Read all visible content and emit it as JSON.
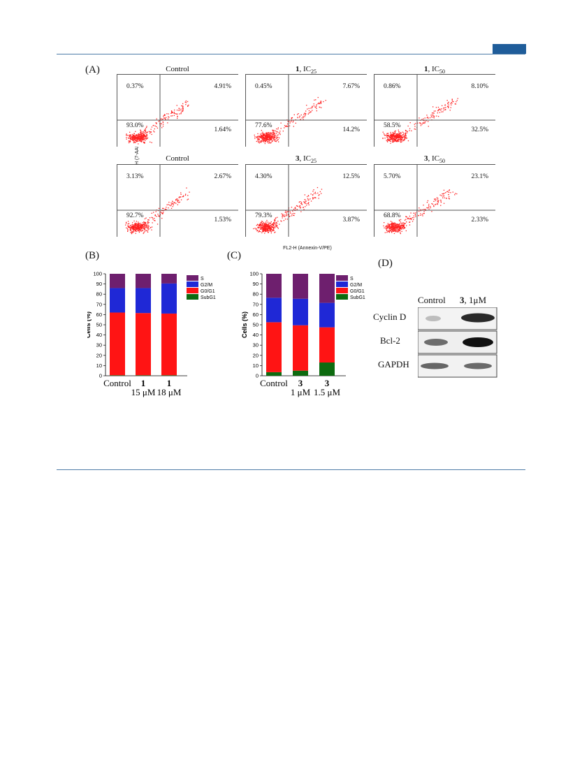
{
  "figure": {
    "panel_labels": {
      "A": "(A)",
      "B": "(B)",
      "C": "(C)",
      "D": "(D)"
    },
    "flow_axes": {
      "y": "FL3-H (7-AAD)",
      "x": "FL2-H (Annexin-V/PE)"
    },
    "flow_plots": [
      {
        "title_bold": "",
        "title": "Control",
        "ul": "0.37%",
        "ur": "4.91%",
        "ll": "93.0%",
        "lr": "1.64%"
      },
      {
        "title_bold": "1",
        "title": ", IC",
        "sub": "25",
        "ul": "0.45%",
        "ur": "7.67%",
        "ll": "77.6%",
        "lr": "14.2%"
      },
      {
        "title_bold": "1",
        "title": ", IC",
        "sub": "50",
        "ul": "0.86%",
        "ur": "8.10%",
        "ll": "58.5%",
        "lr": "32.5%"
      },
      {
        "title_bold": "",
        "title": "Control",
        "ul": "3.13%",
        "ur": "2.67%",
        "ll": "92.7%",
        "lr": "1.53%"
      },
      {
        "title_bold": "3",
        "title": ", IC",
        "sub": "25",
        "ul": "4.30%",
        "ur": "12.5%",
        "ll": "79.3%",
        "lr": "3.87%"
      },
      {
        "title_bold": "3",
        "title": ", IC",
        "sub": "50",
        "ul": "5.70%",
        "ur": "23.1%",
        "ll": "68.8%",
        "lr": "2.33%"
      }
    ],
    "western": {
      "col_labels": [
        "Control",
        "3",
        ", 1μM"
      ],
      "rows": [
        "Cyclin D",
        "Bcl-2",
        "GAPDH"
      ]
    }
  },
  "chart_data": [
    {
      "type": "bar",
      "stacked": true,
      "ylabel": "Cells (%)",
      "ylim": [
        0,
        100
      ],
      "yticks": [
        0,
        10,
        20,
        30,
        40,
        50,
        60,
        70,
        80,
        90,
        100
      ],
      "categories": [
        "Control",
        "1",
        "1"
      ],
      "sub_labels": [
        "",
        "15 μM",
        "18 μM"
      ],
      "legend": [
        "S",
        "G2/M",
        "G0/G1",
        "SubG1"
      ],
      "colors": {
        "S": "#6e1f6e",
        "G2/M": "#1f28d6",
        "G0/G1": "#ff1414",
        "SubG1": "#0d6b10"
      },
      "series": [
        {
          "name": "SubG1",
          "values": [
            0.5,
            0.5,
            0.5
          ]
        },
        {
          "name": "G0/G1",
          "values": [
            61.5,
            61.0,
            60.5
          ]
        },
        {
          "name": "G2/M",
          "values": [
            24.0,
            24.5,
            29.5
          ]
        },
        {
          "name": "S",
          "values": [
            14.0,
            14.0,
            9.5
          ]
        }
      ]
    },
    {
      "type": "bar",
      "stacked": true,
      "ylabel": "Cells (%)",
      "ylim": [
        0,
        100
      ],
      "yticks": [
        0,
        10,
        20,
        30,
        40,
        50,
        60,
        70,
        80,
        90,
        100
      ],
      "categories": [
        "Control",
        "3",
        "3"
      ],
      "sub_labels": [
        "",
        "1 μM",
        "1.5 μM"
      ],
      "legend": [
        "S",
        "G2/M",
        "G0/G1",
        "SubG1"
      ],
      "colors": {
        "S": "#6e1f6e",
        "G2/M": "#1f28d6",
        "G0/G1": "#ff1414",
        "SubG1": "#0d6b10"
      },
      "series": [
        {
          "name": "SubG1",
          "values": [
            3.5,
            5.0,
            13.0
          ]
        },
        {
          "name": "G0/G1",
          "values": [
            49.0,
            44.5,
            34.5
          ]
        },
        {
          "name": "G2/M",
          "values": [
            24.0,
            26.0,
            24.0
          ]
        },
        {
          "name": "S",
          "values": [
            23.5,
            24.5,
            28.5
          ]
        }
      ]
    }
  ]
}
